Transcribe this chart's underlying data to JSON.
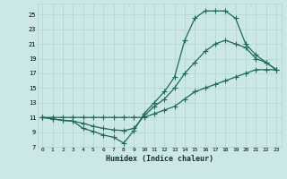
{
  "xlabel": "Humidex (Indice chaleur)",
  "bg_color": "#cce8e6",
  "line_color": "#1a6b5e",
  "grid_color": "#b0d4d0",
  "xlim": [
    -0.5,
    23.5
  ],
  "ylim": [
    7,
    26.5
  ],
  "xticks": [
    0,
    1,
    2,
    3,
    4,
    5,
    6,
    7,
    8,
    9,
    10,
    11,
    12,
    13,
    14,
    15,
    16,
    17,
    18,
    19,
    20,
    21,
    22,
    23
  ],
  "yticks": [
    7,
    9,
    11,
    13,
    15,
    17,
    19,
    21,
    23,
    25
  ],
  "line1_x": [
    0,
    1,
    2,
    3,
    4,
    5,
    6,
    7,
    8,
    9,
    10,
    11,
    12,
    13,
    14,
    15,
    16,
    17,
    18,
    19,
    20,
    21,
    22,
    23
  ],
  "line1_y": [
    11,
    10.8,
    10.6,
    10.5,
    9.5,
    9.1,
    8.6,
    8.3,
    7.5,
    9.2,
    11.5,
    13.0,
    14.5,
    16.5,
    21.5,
    24.5,
    25.5,
    25.5,
    25.5,
    24.5,
    21.0,
    19.5,
    18.5,
    17.5
  ],
  "line2_x": [
    0,
    1,
    2,
    3,
    4,
    5,
    6,
    7,
    8,
    9,
    10,
    11,
    12,
    13,
    14,
    15,
    16,
    17,
    18,
    19,
    20,
    21,
    22,
    23
  ],
  "line2_y": [
    11,
    10.8,
    10.6,
    10.5,
    10.2,
    9.8,
    9.5,
    9.3,
    9.2,
    9.5,
    11.2,
    12.5,
    13.5,
    15.0,
    17.0,
    18.5,
    20.0,
    21.0,
    21.5,
    21.0,
    20.5,
    19.0,
    18.5,
    17.5
  ],
  "line3_x": [
    0,
    1,
    2,
    3,
    4,
    5,
    6,
    7,
    8,
    9,
    10,
    11,
    12,
    13,
    14,
    15,
    16,
    17,
    18,
    19,
    20,
    21,
    22,
    23
  ],
  "line3_y": [
    11,
    11,
    11,
    11,
    11,
    11,
    11,
    11,
    11,
    11,
    11,
    11.5,
    12,
    12.5,
    13.5,
    14.5,
    15.0,
    15.5,
    16.0,
    16.5,
    17.0,
    17.5,
    17.5,
    17.5
  ]
}
